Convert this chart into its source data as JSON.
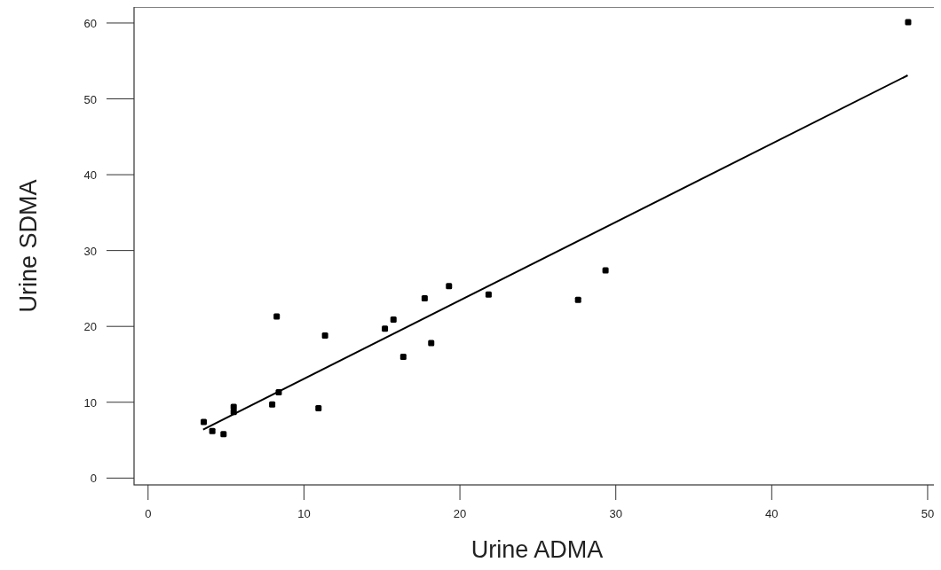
{
  "chart_data": {
    "type": "scatter",
    "xlabel": "Urine ADMA",
    "ylabel": "Urine SDMA",
    "xlim": [
      -0.9,
      50.8
    ],
    "ylim": [
      -0.9,
      62.1
    ],
    "xticks": [
      0,
      10,
      20,
      30,
      40,
      50
    ],
    "yticks": [
      0,
      10,
      20,
      30,
      40,
      50,
      60
    ],
    "grid": false,
    "series": [
      {
        "marker": "square",
        "color": "#000000",
        "x": [
          3.57,
          4.12,
          4.84,
          5.49,
          5.49,
          7.96,
          8.38,
          8.25,
          10.93,
          11.35,
          15.19,
          15.74,
          16.37,
          17.74,
          18.16,
          19.3,
          21.84,
          27.58,
          29.34,
          48.75
        ],
        "values": [
          7.4,
          6.2,
          5.8,
          9.4,
          8.7,
          9.7,
          11.3,
          21.3,
          9.2,
          18.8,
          19.7,
          20.9,
          16.0,
          23.7,
          17.8,
          25.3,
          24.2,
          23.5,
          27.4,
          60.1
        ]
      },
      {
        "type": "line",
        "marker": "none",
        "color": "#000000",
        "x": [
          3.53,
          48.72
        ],
        "values": [
          6.4,
          53.1
        ]
      }
    ]
  }
}
